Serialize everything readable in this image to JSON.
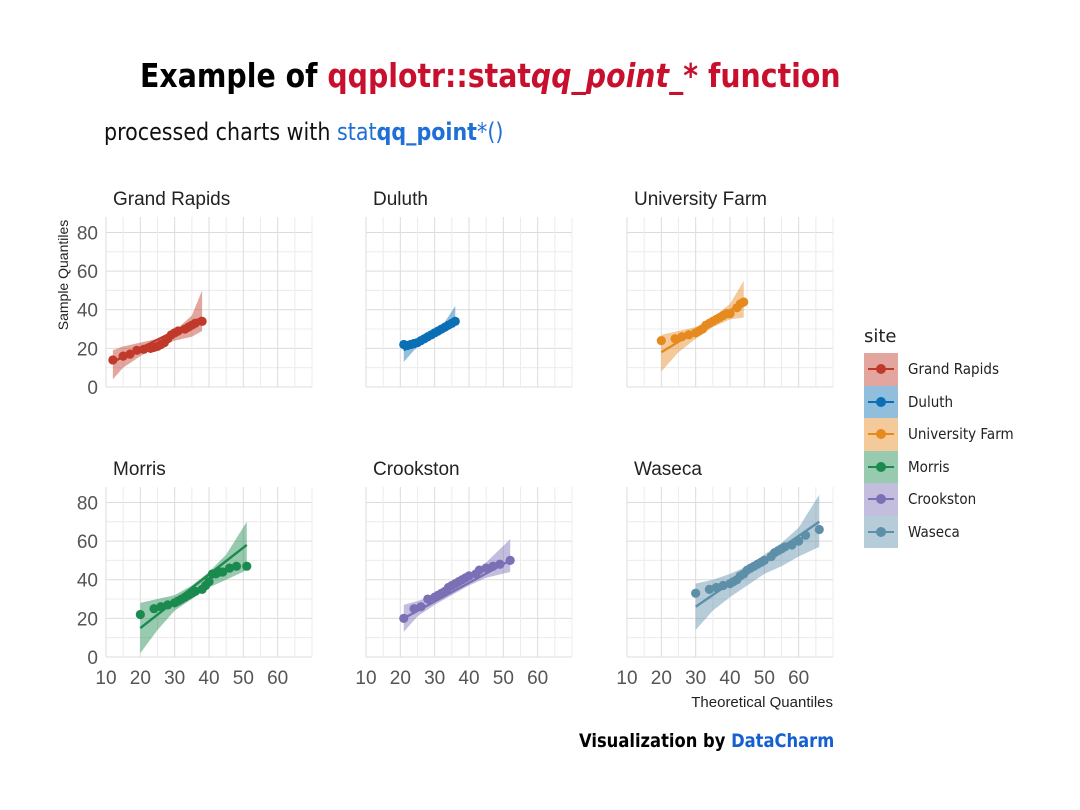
{
  "title": {
    "prefix": "Example of ",
    "pkg": "qqplotr::stat",
    "italic": "qq_point",
    "suffix": "_*",
    "tail": " function",
    "dark_color": "#000000",
    "accent_color": "#C8102E"
  },
  "subtitle": {
    "prefix": "processed charts with ",
    "code_a": "stat",
    "code_b": "qq_point",
    "code_c": "*()",
    "text_color": "#111111",
    "code_color": "#1E6FD6"
  },
  "caption": {
    "prefix": "Visualization by ",
    "brand": "DataCharm",
    "text_color": "#000000",
    "brand_color": "#1560D0"
  },
  "chart_data": {
    "type": "scatter",
    "facet_by": "site",
    "xlabel": "Theoretical Quantiles",
    "ylabel": "Sample Quantiles",
    "xlim": [
      10,
      70
    ],
    "ylim": [
      0,
      88
    ],
    "xticks": [
      10,
      20,
      30,
      40,
      50,
      60
    ],
    "yticks": [
      0,
      20,
      40,
      60,
      80
    ],
    "grid": true,
    "legend": {
      "title": "site",
      "position": "right"
    },
    "series": [
      {
        "name": "Grand Rapids",
        "color": "#C0392B",
        "points": [
          [
            12,
            14
          ],
          [
            15,
            16
          ],
          [
            17,
            17
          ],
          [
            19,
            19
          ],
          [
            21,
            19.5
          ],
          [
            23,
            20
          ],
          [
            24,
            20.5
          ],
          [
            25,
            21
          ],
          [
            26,
            22
          ],
          [
            27,
            23
          ],
          [
            28,
            25
          ],
          [
            29,
            27
          ],
          [
            30,
            28
          ],
          [
            31,
            29
          ],
          [
            33,
            30
          ],
          [
            34,
            31
          ],
          [
            35,
            32
          ],
          [
            36,
            33
          ],
          [
            38,
            34
          ]
        ],
        "line": [
          [
            12,
            13
          ],
          [
            38,
            36
          ]
        ],
        "band_upper": [
          [
            12,
            19
          ],
          [
            15,
            21
          ],
          [
            20,
            23
          ],
          [
            25,
            25
          ],
          [
            30,
            29
          ],
          [
            35,
            37
          ],
          [
            38,
            50
          ]
        ],
        "band_lower": [
          [
            12,
            4
          ],
          [
            15,
            10
          ],
          [
            20,
            16
          ],
          [
            25,
            21
          ],
          [
            30,
            24
          ],
          [
            35,
            26
          ],
          [
            38,
            29
          ]
        ]
      },
      {
        "name": "Duluth",
        "color": "#0A6FB4",
        "points": [
          [
            21,
            22
          ],
          [
            22,
            21.5
          ],
          [
            23,
            22
          ],
          [
            24,
            22.5
          ],
          [
            25,
            23
          ],
          [
            26,
            24
          ],
          [
            27,
            25
          ],
          [
            28,
            26
          ],
          [
            29,
            27
          ],
          [
            30,
            28
          ],
          [
            31,
            29
          ],
          [
            32,
            30
          ],
          [
            33,
            31
          ],
          [
            34,
            32
          ],
          [
            35,
            33
          ],
          [
            36,
            34
          ]
        ],
        "line": [
          [
            21,
            19
          ],
          [
            36,
            36
          ]
        ],
        "band_upper": [
          [
            21,
            23
          ],
          [
            24,
            24
          ],
          [
            28,
            27
          ],
          [
            32,
            31
          ],
          [
            36,
            42
          ]
        ],
        "band_lower": [
          [
            21,
            13
          ],
          [
            24,
            19
          ],
          [
            28,
            25
          ],
          [
            32,
            29
          ],
          [
            36,
            31
          ]
        ]
      },
      {
        "name": "University Farm",
        "color": "#E68A1F",
        "points": [
          [
            20,
            24
          ],
          [
            24,
            25
          ],
          [
            26,
            26
          ],
          [
            28,
            27
          ],
          [
            30,
            28
          ],
          [
            31,
            29
          ],
          [
            32,
            30
          ],
          [
            33,
            32
          ],
          [
            34,
            33
          ],
          [
            35,
            34
          ],
          [
            36,
            35
          ],
          [
            37,
            36
          ],
          [
            38,
            37
          ],
          [
            39,
            38
          ],
          [
            40,
            38
          ],
          [
            42,
            41
          ],
          [
            43,
            43
          ],
          [
            44,
            44
          ]
        ],
        "line": [
          [
            20,
            18
          ],
          [
            44,
            44
          ]
        ],
        "band_upper": [
          [
            20,
            27
          ],
          [
            25,
            29
          ],
          [
            30,
            31
          ],
          [
            35,
            36
          ],
          [
            40,
            43
          ],
          [
            44,
            55
          ]
        ],
        "band_lower": [
          [
            20,
            8
          ],
          [
            25,
            18
          ],
          [
            30,
            25
          ],
          [
            35,
            31
          ],
          [
            40,
            35
          ],
          [
            44,
            36
          ]
        ]
      },
      {
        "name": "Morris",
        "color": "#1A8A4E",
        "points": [
          [
            20,
            22
          ],
          [
            24,
            25
          ],
          [
            26,
            26
          ],
          [
            28,
            27
          ],
          [
            30,
            28
          ],
          [
            31,
            29
          ],
          [
            32,
            30
          ],
          [
            33,
            31
          ],
          [
            34,
            32
          ],
          [
            35,
            33
          ],
          [
            36,
            34
          ],
          [
            38,
            35
          ],
          [
            39,
            37
          ],
          [
            40,
            39
          ],
          [
            41,
            43
          ],
          [
            42,
            43
          ],
          [
            43,
            44
          ],
          [
            44,
            44
          ],
          [
            46,
            46
          ],
          [
            48,
            47
          ],
          [
            51,
            47
          ]
        ],
        "line": [
          [
            20,
            15
          ],
          [
            51,
            58
          ]
        ],
        "band_upper": [
          [
            20,
            28
          ],
          [
            25,
            30
          ],
          [
            30,
            32
          ],
          [
            35,
            37
          ],
          [
            40,
            44
          ],
          [
            45,
            53
          ],
          [
            51,
            70
          ]
        ],
        "band_lower": [
          [
            20,
            2
          ],
          [
            25,
            14
          ],
          [
            30,
            24
          ],
          [
            35,
            30
          ],
          [
            40,
            36
          ],
          [
            45,
            40
          ],
          [
            51,
            45
          ]
        ]
      },
      {
        "name": "Crookston",
        "color": "#7B6FB5",
        "points": [
          [
            21,
            20
          ],
          [
            24,
            25
          ],
          [
            26,
            26
          ],
          [
            28,
            30
          ],
          [
            30,
            31
          ],
          [
            31,
            32
          ],
          [
            32,
            33
          ],
          [
            33,
            34
          ],
          [
            34,
            36
          ],
          [
            35,
            37
          ],
          [
            36,
            38
          ],
          [
            37,
            39
          ],
          [
            38,
            40
          ],
          [
            39,
            41
          ],
          [
            40,
            42
          ],
          [
            42,
            43
          ],
          [
            43,
            45
          ],
          [
            45,
            46
          ],
          [
            47,
            47
          ],
          [
            49,
            48
          ],
          [
            52,
            50
          ]
        ],
        "line": [
          [
            21,
            20
          ],
          [
            52,
            50
          ]
        ],
        "band_upper": [
          [
            21,
            27
          ],
          [
            25,
            29
          ],
          [
            30,
            32
          ],
          [
            35,
            37
          ],
          [
            40,
            43
          ],
          [
            45,
            49
          ],
          [
            52,
            61
          ]
        ],
        "band_lower": [
          [
            21,
            13
          ],
          [
            25,
            21
          ],
          [
            30,
            27
          ],
          [
            35,
            32
          ],
          [
            40,
            37
          ],
          [
            45,
            41
          ],
          [
            52,
            44
          ]
        ]
      },
      {
        "name": "Waseca",
        "color": "#5E8FA8",
        "points": [
          [
            30,
            33
          ],
          [
            34,
            35
          ],
          [
            36,
            36
          ],
          [
            38,
            37
          ],
          [
            40,
            38
          ],
          [
            41,
            39
          ],
          [
            42,
            40
          ],
          [
            43,
            42
          ],
          [
            44,
            43
          ],
          [
            45,
            45
          ],
          [
            46,
            46
          ],
          [
            47,
            47
          ],
          [
            48,
            48
          ],
          [
            49,
            49
          ],
          [
            50,
            50
          ],
          [
            52,
            52
          ],
          [
            53,
            54
          ],
          [
            54,
            55
          ],
          [
            55,
            56
          ],
          [
            56,
            57
          ],
          [
            58,
            58
          ],
          [
            60,
            60
          ],
          [
            62,
            63
          ],
          [
            66,
            66
          ]
        ],
        "line": [
          [
            30,
            26
          ],
          [
            66,
            70
          ]
        ],
        "band_upper": [
          [
            30,
            38
          ],
          [
            35,
            40
          ],
          [
            40,
            43
          ],
          [
            45,
            47
          ],
          [
            50,
            53
          ],
          [
            55,
            59
          ],
          [
            60,
            67
          ],
          [
            66,
            84
          ]
        ],
        "band_lower": [
          [
            30,
            14
          ],
          [
            35,
            24
          ],
          [
            40,
            31
          ],
          [
            45,
            37
          ],
          [
            50,
            43
          ],
          [
            55,
            47
          ],
          [
            60,
            52
          ],
          [
            66,
            57
          ]
        ]
      }
    ]
  }
}
